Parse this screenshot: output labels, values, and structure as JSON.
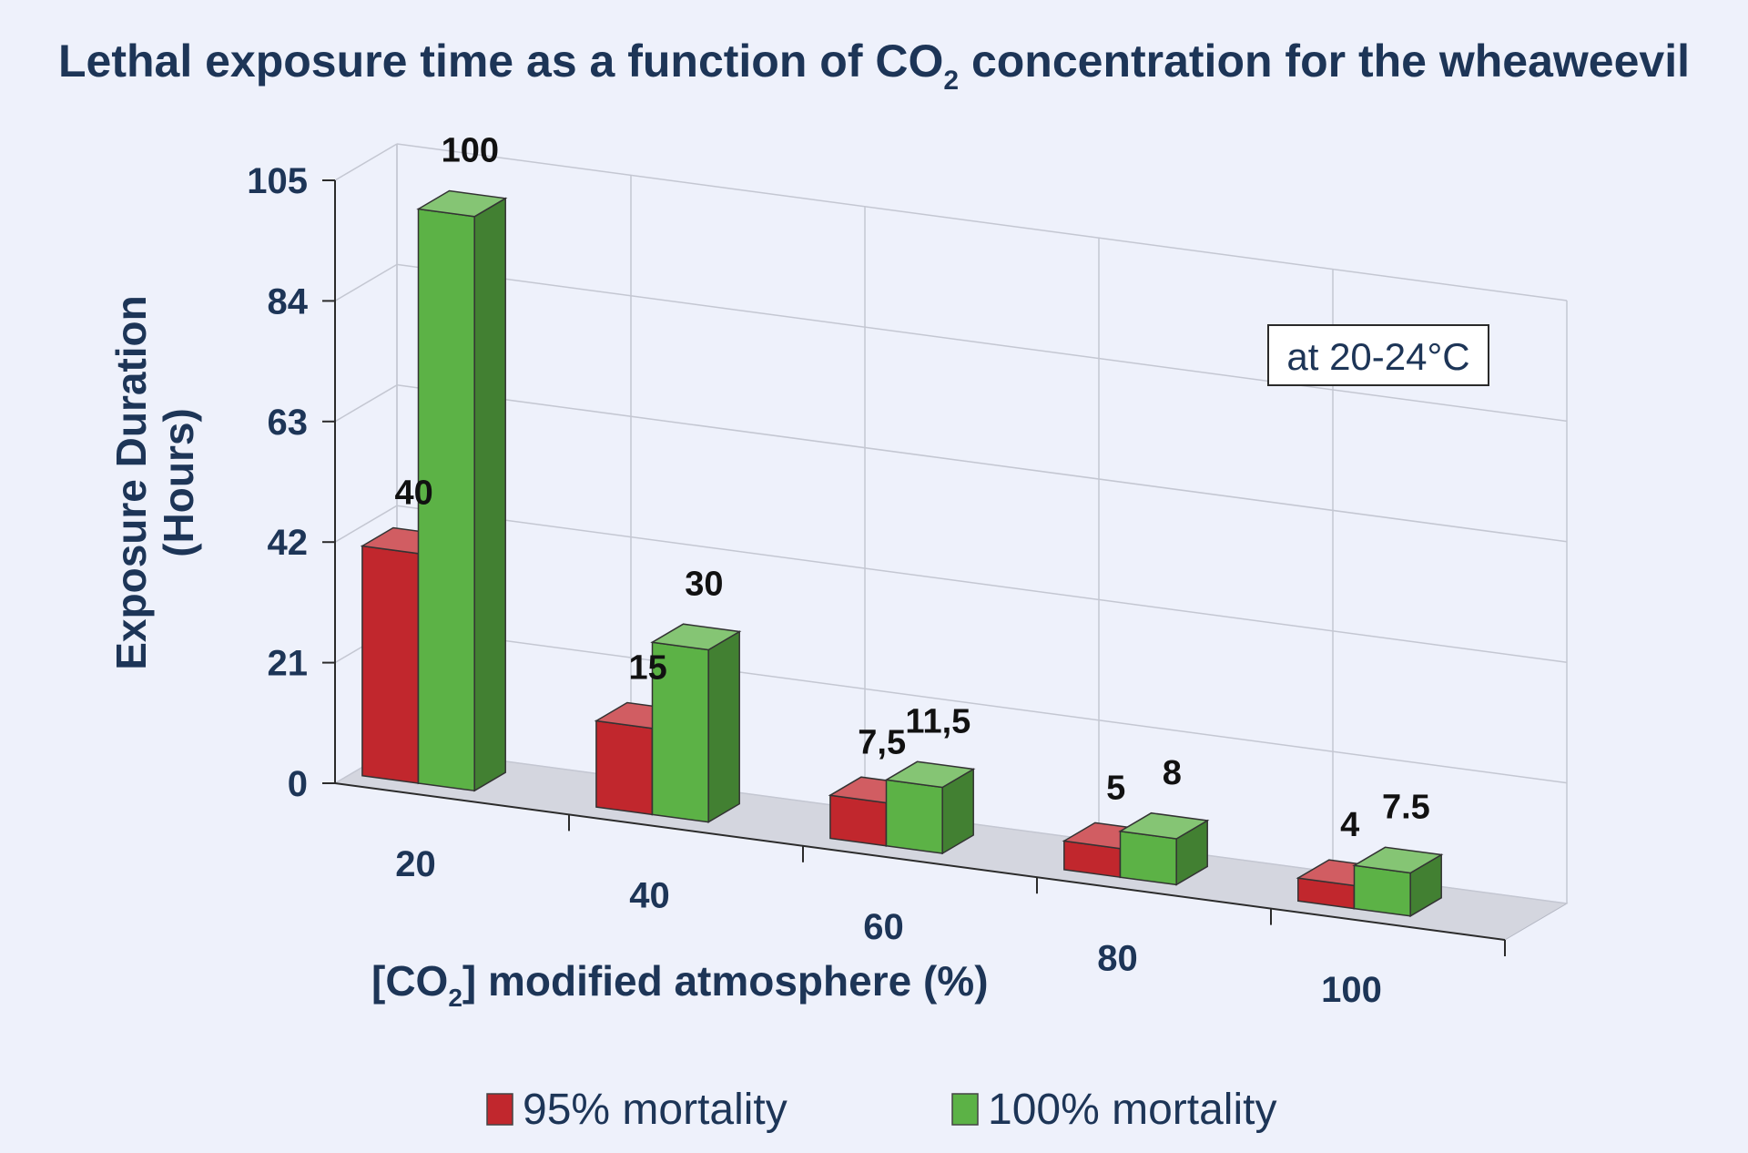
{
  "chart_data": {
    "type": "bar",
    "title": {
      "before": "Lethal exposure time as a function of CO",
      "subscript": "2",
      "after": " concentration for the wheaweevil"
    },
    "ylabel": {
      "line1": "Exposure Duration",
      "line2": "(Hours)"
    },
    "xlabel": {
      "before": "[CO",
      "subscript": "2",
      "after": "] modified atmosphere (%)"
    },
    "y_ticks": [
      0,
      21,
      42,
      63,
      84,
      105
    ],
    "ylim": [
      0,
      105
    ],
    "categories": [
      "20",
      "40",
      "60",
      "80",
      "100"
    ],
    "series": [
      {
        "name": "95% mortality",
        "color": "#c1272d",
        "values": [
          40,
          15,
          7.5,
          5,
          4
        ],
        "labels": [
          "40",
          "15",
          "7,5",
          "5",
          "4"
        ]
      },
      {
        "name": "100% mortality",
        "color": "#5cb246",
        "values": [
          100,
          30,
          11.5,
          8,
          7.5
        ],
        "labels": [
          "100",
          "30",
          "11,5",
          "8",
          "7.5"
        ]
      }
    ],
    "annotation": "at 20-24°C",
    "grid": true,
    "legend_position": "bottom"
  }
}
